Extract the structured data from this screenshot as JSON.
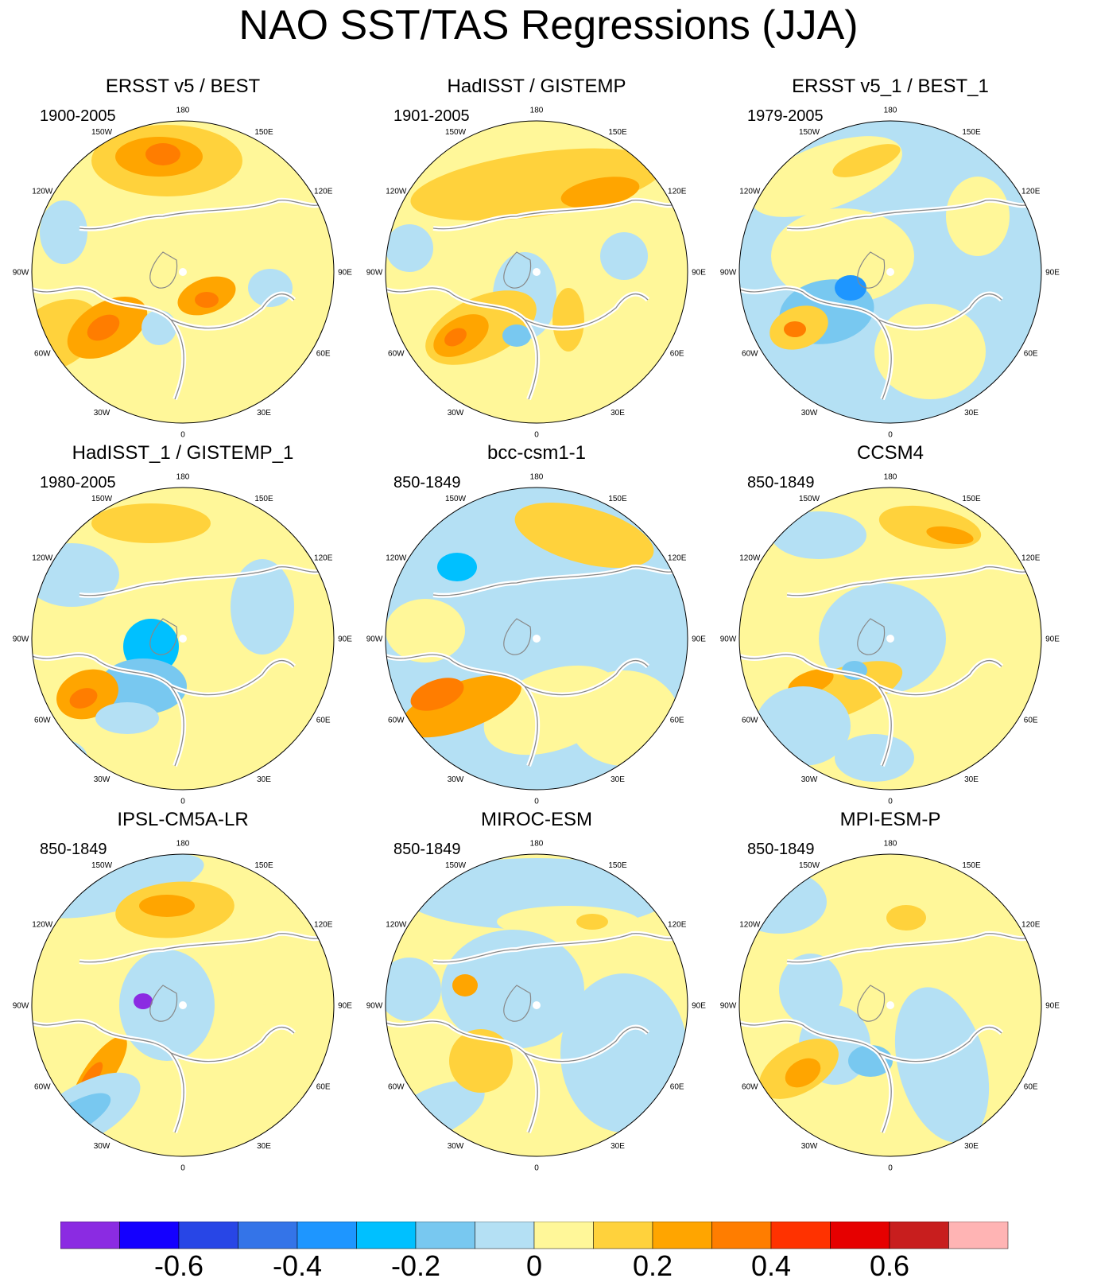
{
  "title": "NAO SST/TAS Regressions (JJA)",
  "longitude_labels": [
    "180",
    "150E",
    "120E",
    "90E",
    "60E",
    "30E",
    "0",
    "30W",
    "60W",
    "90W",
    "120W",
    "150W"
  ],
  "panels": [
    {
      "title": "ERSST v5 / BEST",
      "period": "1900-2005"
    },
    {
      "title": "HadISST / GISTEMP",
      "period": "1901-2005"
    },
    {
      "title": "ERSST v5_1 / BEST_1",
      "period": "1979-2005"
    },
    {
      "title": "HadISST_1 / GISTEMP_1",
      "period": "1980-2005"
    },
    {
      "title": "bcc-csm1-1",
      "period": "850-1849"
    },
    {
      "title": "CCSM4",
      "period": "850-1849"
    },
    {
      "title": "IPSL-CM5A-LR",
      "period": "850-1849"
    },
    {
      "title": "MIROC-ESM",
      "period": "850-1849"
    },
    {
      "title": "MPI-ESM-P",
      "period": "850-1849"
    }
  ],
  "colorbar": {
    "colors": [
      "#8b2be2",
      "#1400ff",
      "#2846e6",
      "#3474e8",
      "#1e96ff",
      "#00c0ff",
      "#78c8f0",
      "#b4e0f4",
      "#fff799",
      "#ffd23c",
      "#ffa500",
      "#ff7d00",
      "#ff3200",
      "#e60000",
      "#c81e1e",
      "#ffb4b4"
    ],
    "tick_labels": [
      "-0.6",
      "-0.4",
      "-0.2",
      "0",
      "0.2",
      "0.4",
      "0.6"
    ]
  }
}
